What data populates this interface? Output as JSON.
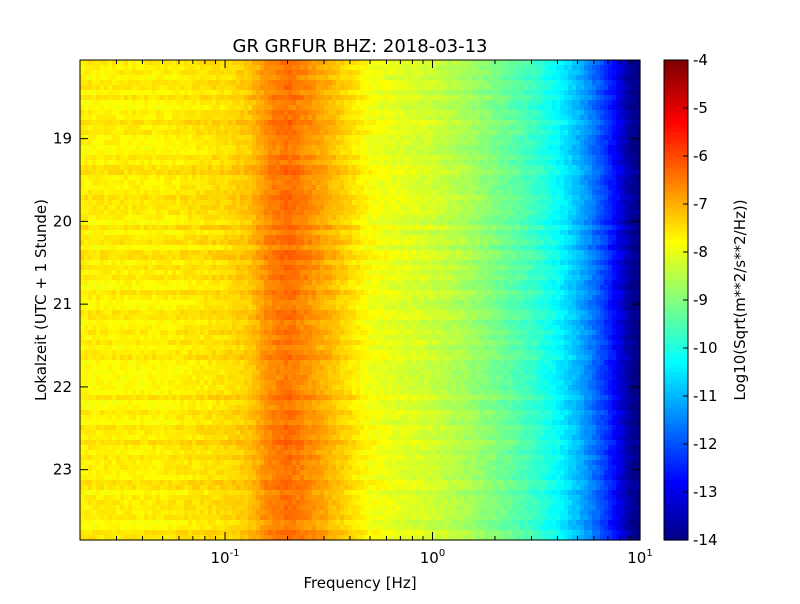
{
  "chart_data": {
    "type": "heatmap",
    "title": "GR GRFUR BHZ: 2018-03-13",
    "xlabel": "Frequency [Hz]",
    "ylabel": "Lokalzeit (UTC + 1 Stunde)",
    "x_scale": "log",
    "xlim": [
      0.02,
      10
    ],
    "x_ticks": [
      {
        "value": 0.1,
        "base": "10",
        "exp": "-1"
      },
      {
        "value": 1,
        "base": "10",
        "exp": "0"
      },
      {
        "value": 10,
        "base": "10",
        "exp": "1"
      }
    ],
    "ylim": [
      18.05,
      23.85
    ],
    "y_inverted": true,
    "y_ticks": [
      {
        "value": 19,
        "label": "19"
      },
      {
        "value": 20,
        "label": "20"
      },
      {
        "value": 21,
        "label": "21"
      },
      {
        "value": 22,
        "label": "22"
      },
      {
        "value": 23,
        "label": "23"
      }
    ],
    "colorbar": {
      "label": "Log10(Sqrt(m**2/s**2/Hz))",
      "range": [
        -14,
        -4
      ],
      "colormap": "jet",
      "ticks": [
        "-4",
        "-5",
        "-6",
        "-7",
        "-8",
        "-9",
        "-10",
        "-11",
        "-12",
        "-13",
        "-14"
      ]
    },
    "spectrum_profile": {
      "frequency_hz": [
        0.02,
        0.05,
        0.1,
        0.13,
        0.16,
        0.2,
        0.25,
        0.3,
        0.4,
        0.5,
        0.7,
        1.0,
        1.5,
        2.0,
        3.0,
        4.0,
        5.0,
        6.0,
        7.0,
        8.0,
        9.0,
        10.0
      ],
      "log10_amplitude": [
        -7.6,
        -7.6,
        -7.4,
        -7.2,
        -6.6,
        -6.3,
        -6.6,
        -6.9,
        -7.4,
        -7.8,
        -8.0,
        -8.2,
        -8.6,
        -9.0,
        -9.6,
        -10.2,
        -10.9,
        -11.6,
        -12.3,
        -13.0,
        -13.7,
        -14.0
      ]
    }
  }
}
